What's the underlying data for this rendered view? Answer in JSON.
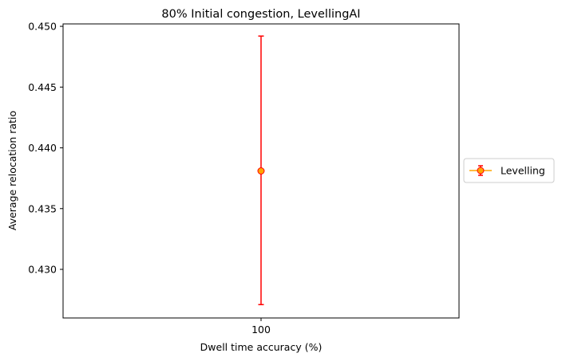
{
  "chart_data": {
    "type": "scatter",
    "title": "80% Initial congestion, LevellingAI",
    "xlabel": "Dwell time accuracy (%)",
    "ylabel": "Average relocation ratio",
    "categories": [
      "100"
    ],
    "ylim": [
      0.426,
      0.4502
    ],
    "yticks": [
      "0.430",
      "0.435",
      "0.440",
      "0.445",
      "0.450"
    ],
    "ytick_values": [
      0.43,
      0.435,
      0.44,
      0.445,
      0.45
    ],
    "grid": false,
    "legend": {
      "placement": "right-outside"
    },
    "series": [
      {
        "name": "Levelling",
        "values": [
          0.4381
        ],
        "error_low": [
          0.4271
        ],
        "error_high": [
          0.4492
        ],
        "marker": "circle",
        "marker_fill": "#ffa500",
        "marker_edge": "#ff0000",
        "errorbar_color": "#ff0000"
      }
    ]
  }
}
